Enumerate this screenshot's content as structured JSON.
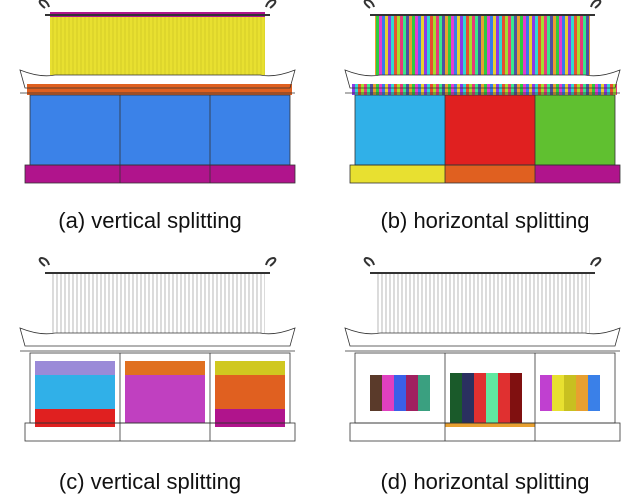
{
  "figure": {
    "panels": [
      {
        "caption": "(a) vertical splitting"
      },
      {
        "caption": "(b) horizontal splitting"
      },
      {
        "caption": "(c) vertical splitting"
      },
      {
        "caption": "(d) horizontal splitting"
      }
    ]
  }
}
